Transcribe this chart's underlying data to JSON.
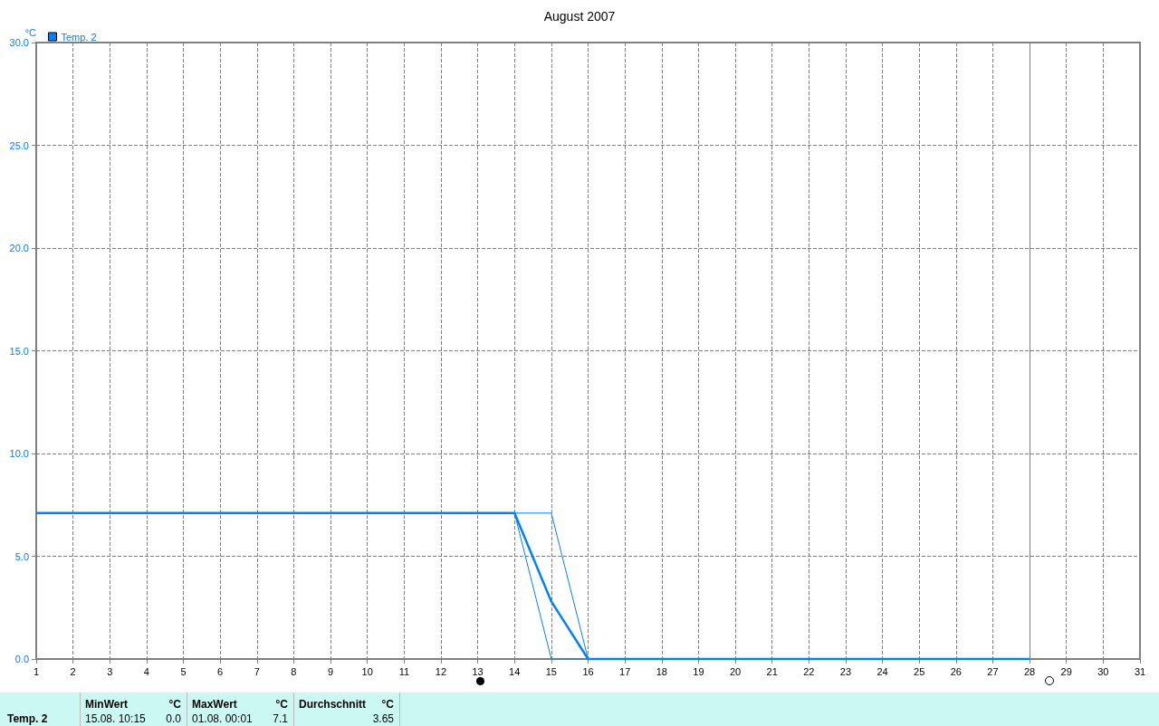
{
  "chart_data": {
    "type": "line",
    "title": "August 2007",
    "ylabel": "°C",
    "legend": "top left",
    "grid": true,
    "marker": "none",
    "line_style": "solid",
    "xlim": [
      1,
      31
    ],
    "xticks": [
      1,
      2,
      3,
      4,
      5,
      6,
      7,
      8,
      9,
      10,
      11,
      12,
      13,
      14,
      15,
      16,
      17,
      18,
      19,
      20,
      21,
      22,
      23,
      24,
      25,
      26,
      27,
      28,
      29,
      30,
      31
    ],
    "ylim": [
      0,
      30
    ],
    "yticks": [
      {
        "value": 0,
        "label": "0.0"
      },
      {
        "value": 5,
        "label": "5.0"
      },
      {
        "value": 10,
        "label": "10.0"
      },
      {
        "value": 15,
        "label": "15.0"
      },
      {
        "value": 20,
        "label": "20.0"
      },
      {
        "value": 25,
        "label": "25.0"
      },
      {
        "value": 30,
        "label": "30.0"
      }
    ],
    "x": [
      1,
      14,
      15,
      16,
      28
    ],
    "series": [
      {
        "name": "Temp. 2",
        "color": "#0080ff",
        "values": [
          7.1,
          7.1,
          2.8,
          0,
          0
        ]
      },
      {
        "color": "#0080ff",
        "values": [
          7.1,
          7.1,
          7.1,
          0,
          0
        ]
      },
      {
        "color": "#0080ff",
        "values": [
          7.1,
          7.1,
          0,
          0,
          0
        ]
      }
    ],
    "ref_lines": [
      {
        "axis": "x",
        "value": 28,
        "color": "#808080"
      }
    ],
    "annotations": [
      "Temp. 2",
      "MinWert",
      "°C",
      "15.08.  10:15",
      "0.0",
      "MaxWert",
      "°C",
      "01.08.  00:01",
      "7.1",
      "Durchschnitt",
      "°C",
      "3.65"
    ]
  }
}
